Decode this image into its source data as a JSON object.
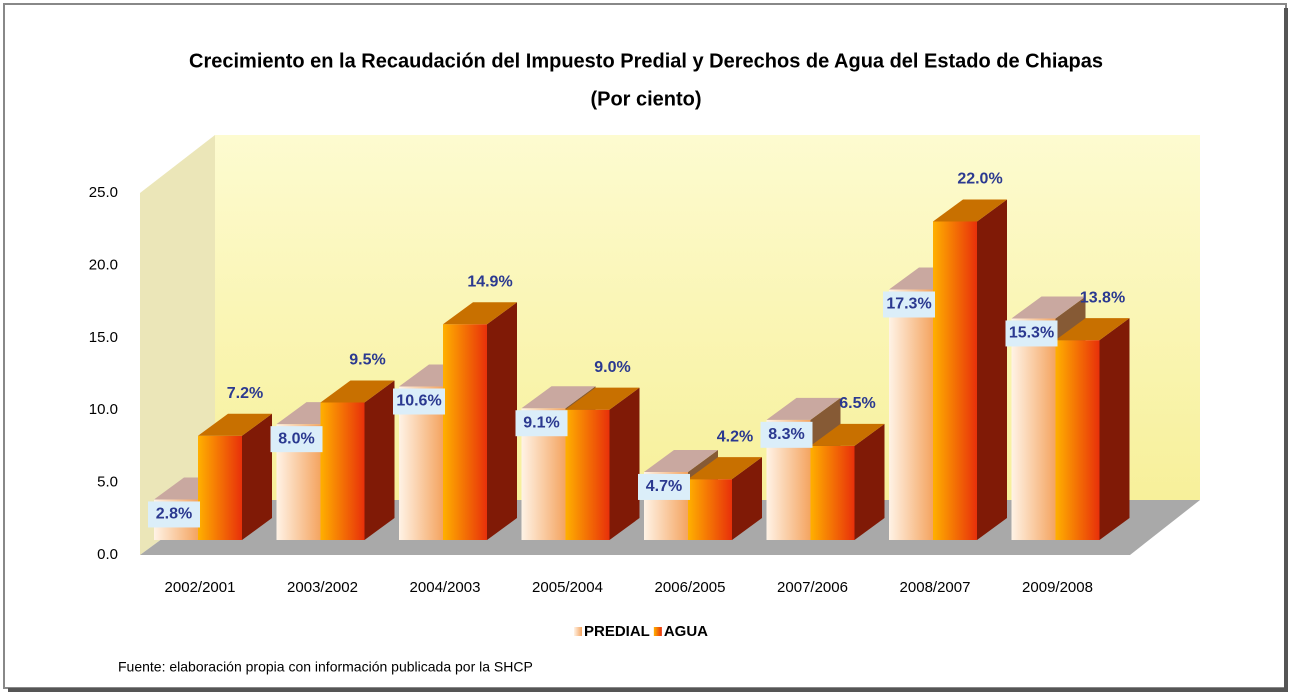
{
  "chart_data": {
    "type": "bar3d",
    "title": "Crecimiento en la Recaudación del Impuesto Predial y Derechos de Agua del Estado de Chiapas",
    "subtitle": "(Por ciento)",
    "categories": [
      "2002/2001",
      "2003/2002",
      "2004/2003",
      "2005/2004",
      "2006/2005",
      "2007/2006",
      "2008/2007",
      "2009/2008"
    ],
    "series": [
      {
        "name": "PREDIAL",
        "color": "#f4a460",
        "values": [
          2.8,
          8.0,
          10.6,
          9.1,
          4.7,
          8.3,
          17.3,
          15.3
        ],
        "value_labels": [
          "2.8%",
          "8.0%",
          "10.6%",
          "9.1%",
          "4.7%",
          "8.3%",
          "17.3%",
          "15.3%"
        ]
      },
      {
        "name": "AGUA",
        "color": "#e8300a",
        "values": [
          7.2,
          9.5,
          14.9,
          9.0,
          4.2,
          6.5,
          22.0,
          13.8
        ],
        "value_labels": [
          "7.2%",
          "9.5%",
          "14.9%",
          "9.0%",
          "4.2%",
          "6.5%",
          "22.0%",
          "13.8%"
        ]
      }
    ],
    "ylim": [
      0,
      25
    ],
    "yticks": [
      {
        "value": 0,
        "label": "0.0"
      },
      {
        "value": 5,
        "label": "5.0"
      },
      {
        "value": 10,
        "label": "10.0"
      },
      {
        "value": 15,
        "label": "15.0"
      },
      {
        "value": 20,
        "label": "20.0"
      },
      {
        "value": 25,
        "label": "25.0"
      }
    ],
    "legend": "bottom",
    "source": "Fuente: elaboración propia con información publicada por la SHCP"
  }
}
